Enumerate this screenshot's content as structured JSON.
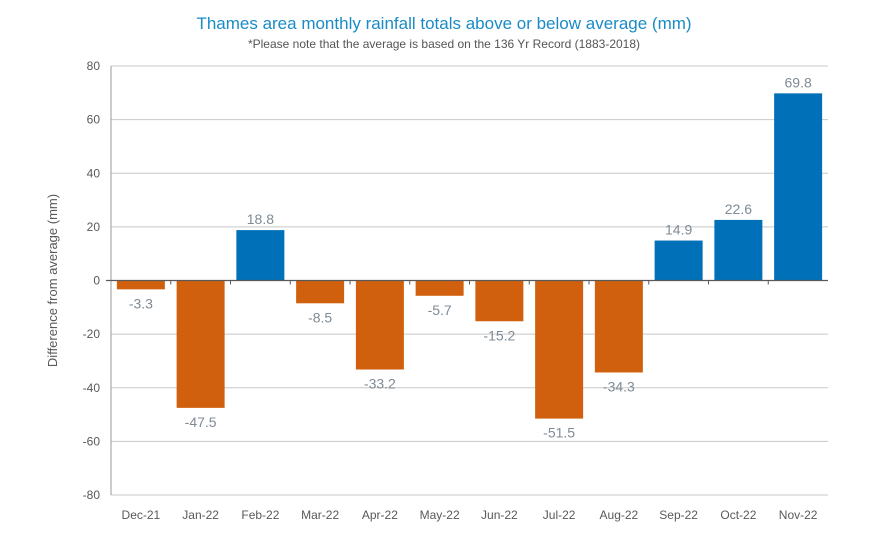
{
  "chart_data": {
    "type": "bar",
    "title": "Thames area monthly rainfall totals above or below average (mm)",
    "subtitle": "*Please note that the average is based on the 136 Yr Record (1883-2018)",
    "xlabel": "",
    "ylabel": "Difference from average (mm)",
    "ylim": [
      -80,
      80
    ],
    "yticks": [
      -80,
      -60,
      -40,
      -20,
      0,
      20,
      40,
      60,
      80
    ],
    "grid": true,
    "categories": [
      "Dec-21",
      "Jan-22",
      "Feb-22",
      "Mar-22",
      "Apr-22",
      "May-22",
      "Jun-22",
      "Jul-22",
      "Aug-22",
      "Sep-22",
      "Oct-22",
      "Nov-22"
    ],
    "values": [
      -3.3,
      -47.5,
      18.8,
      -8.5,
      -33.2,
      -5.7,
      -15.2,
      -51.5,
      -34.3,
      14.9,
      22.6,
      69.8
    ],
    "colors": {
      "positive": "#0071b9",
      "negative": "#d0600e",
      "label": "#7f8b96",
      "title": "#1a8bc6"
    }
  }
}
